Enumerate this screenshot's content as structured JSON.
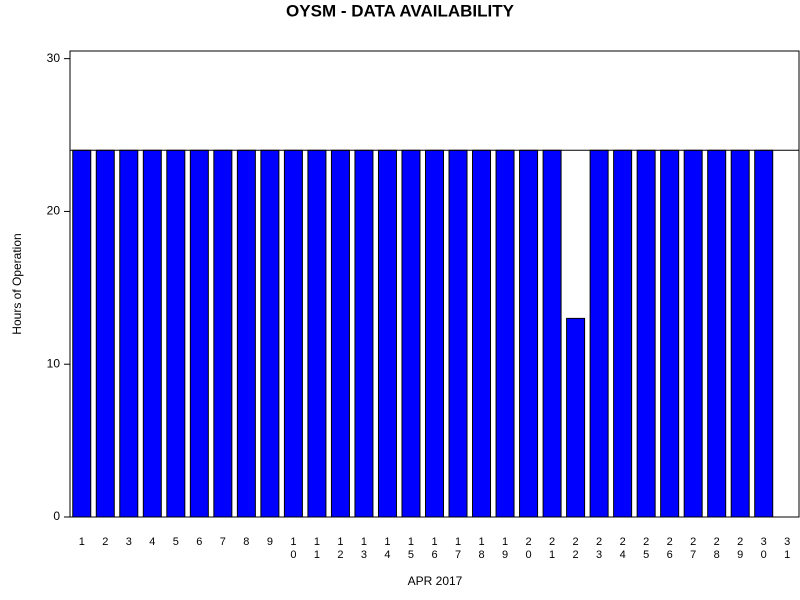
{
  "chart_data": {
    "type": "bar",
    "title": "OYSM - DATA AVAILABILITY",
    "x_label": "APR 2017",
    "y_label": "Hours of Operation",
    "categories": [
      "1",
      "2",
      "3",
      "4",
      "5",
      "6",
      "7",
      "8",
      "9",
      "10",
      "11",
      "12",
      "13",
      "14",
      "15",
      "16",
      "17",
      "18",
      "19",
      "20",
      "21",
      "22",
      "23",
      "24",
      "25",
      "26",
      "27",
      "28",
      "29",
      "30",
      "31"
    ],
    "values": [
      24,
      24,
      24,
      24,
      24,
      24,
      24,
      24,
      24,
      24,
      24,
      24,
      24,
      24,
      24,
      24,
      24,
      24,
      24,
      24,
      24,
      13,
      24,
      24,
      24,
      24,
      24,
      24,
      24,
      24,
      0
    ],
    "color": "#0000ff",
    "ylim": [
      0,
      30.5
    ],
    "yticks": [
      0,
      10,
      20,
      30
    ],
    "reference_line": 24
  }
}
